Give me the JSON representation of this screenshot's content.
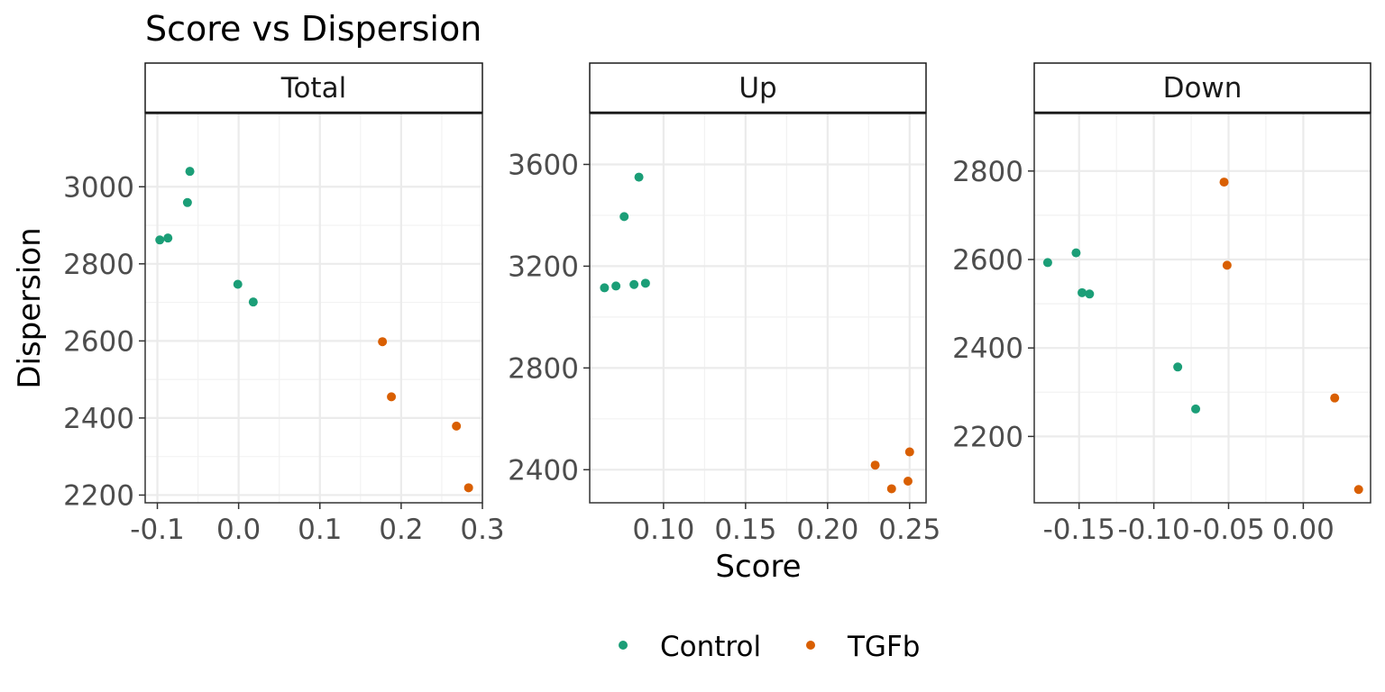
{
  "chart_data": {
    "type": "scatter",
    "title": "Score vs Dispersion",
    "xlabel": "Score",
    "ylabel": "Dispersion",
    "legend_position": "bottom",
    "grid": true,
    "colors": {
      "Control": "#1b9e77",
      "TGFb": "#d95f02"
    },
    "legend": [
      {
        "name": "Control",
        "color": "#1b9e77"
      },
      {
        "name": "TGFb",
        "color": "#d95f02"
      }
    ],
    "panels": [
      {
        "strip": "Total",
        "xlim": [
          -0.115,
          0.3
        ],
        "ylim": [
          2180,
          3190
        ],
        "xticks": [
          -0.1,
          0.0,
          0.1,
          0.2,
          0.3
        ],
        "xtick_labels": [
          "-0.1",
          "0.0",
          "0.1",
          "0.2",
          "0.3"
        ],
        "yticks": [
          2200,
          2400,
          2600,
          2800,
          3000
        ],
        "ytick_labels": [
          "2200",
          "2400",
          "2600",
          "2800",
          "3000"
        ],
        "series": [
          {
            "name": "Control",
            "points": [
              {
                "x": -0.097,
                "y": 2862
              },
              {
                "x": -0.087,
                "y": 2867
              },
              {
                "x": -0.063,
                "y": 2959
              },
              {
                "x": -0.06,
                "y": 3040
              },
              {
                "x": -0.001,
                "y": 2747
              },
              {
                "x": 0.018,
                "y": 2701
              }
            ]
          },
          {
            "name": "TGFb",
            "points": [
              {
                "x": 0.177,
                "y": 2598
              },
              {
                "x": 0.188,
                "y": 2455
              },
              {
                "x": 0.268,
                "y": 2379
              },
              {
                "x": 0.283,
                "y": 2219
              }
            ]
          }
        ]
      },
      {
        "strip": "Up",
        "xlim": [
          0.055,
          0.26
        ],
        "ylim": [
          2270,
          3800
        ],
        "xticks": [
          0.1,
          0.15,
          0.2,
          0.25
        ],
        "xtick_labels": [
          "0.10",
          "0.15",
          "0.20",
          "0.25"
        ],
        "yticks": [
          2400,
          2800,
          3200,
          3600
        ],
        "ytick_labels": [
          "2400",
          "2800",
          "3200",
          "3600"
        ],
        "series": [
          {
            "name": "Control",
            "points": [
              {
                "x": 0.064,
                "y": 3115
              },
              {
                "x": 0.071,
                "y": 3122
              },
              {
                "x": 0.082,
                "y": 3128
              },
              {
                "x": 0.089,
                "y": 3133
              },
              {
                "x": 0.085,
                "y": 3550
              },
              {
                "x": 0.076,
                "y": 3395
              }
            ]
          },
          {
            "name": "TGFb",
            "points": [
              {
                "x": 0.229,
                "y": 2418
              },
              {
                "x": 0.239,
                "y": 2325
              },
              {
                "x": 0.249,
                "y": 2355
              },
              {
                "x": 0.25,
                "y": 2470
              }
            ]
          }
        ]
      },
      {
        "strip": "Down",
        "xlim": [
          -0.18,
          0.045
        ],
        "ylim": [
          2050,
          2930
        ],
        "xticks": [
          -0.15,
          -0.1,
          -0.05,
          0.0
        ],
        "xtick_labels": [
          "-0.15",
          "-0.10",
          "-0.05",
          "0.00"
        ],
        "yticks": [
          2200,
          2400,
          2600,
          2800
        ],
        "ytick_labels": [
          "2200",
          "2400",
          "2600",
          "2800"
        ],
        "series": [
          {
            "name": "Control",
            "points": [
              {
                "x": -0.171,
                "y": 2593
              },
              {
                "x": -0.152,
                "y": 2615
              },
              {
                "x": -0.148,
                "y": 2525
              },
              {
                "x": -0.143,
                "y": 2522
              },
              {
                "x": -0.084,
                "y": 2357
              },
              {
                "x": -0.072,
                "y": 2262
              }
            ]
          },
          {
            "name": "TGFb",
            "points": [
              {
                "x": -0.053,
                "y": 2775
              },
              {
                "x": -0.051,
                "y": 2587
              },
              {
                "x": 0.021,
                "y": 2287
              },
              {
                "x": 0.037,
                "y": 2080
              }
            ]
          }
        ]
      }
    ]
  }
}
